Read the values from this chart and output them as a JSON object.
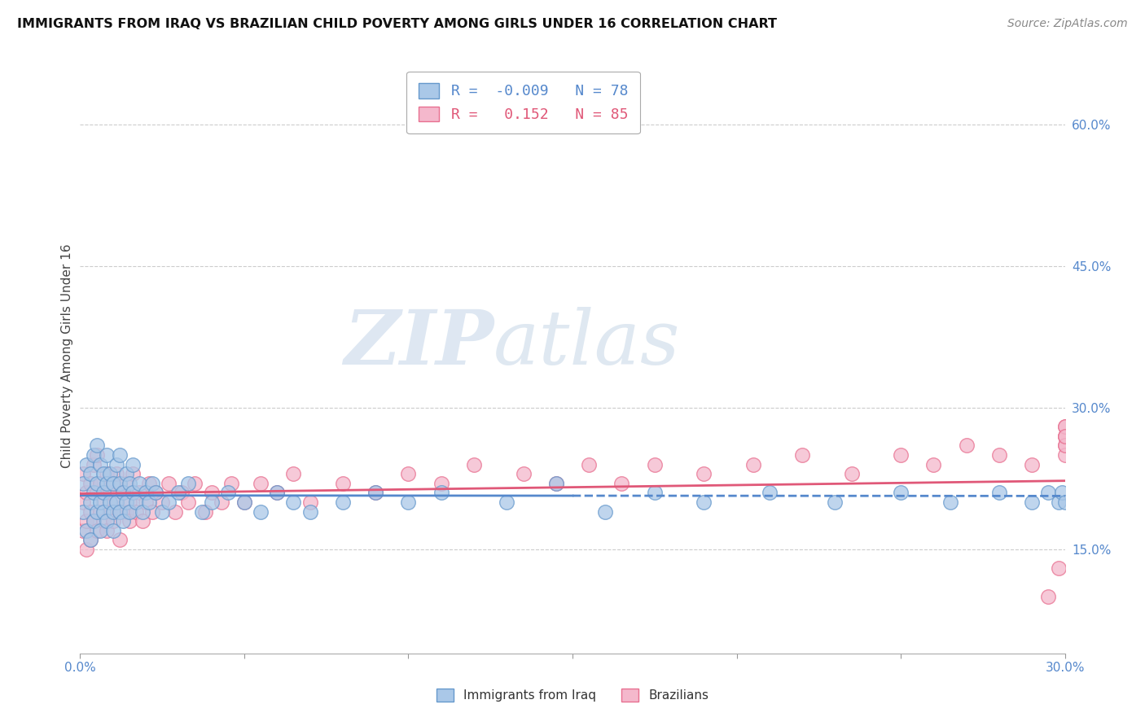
{
  "title": "IMMIGRANTS FROM IRAQ VS BRAZILIAN CHILD POVERTY AMONG GIRLS UNDER 16 CORRELATION CHART",
  "source": "Source: ZipAtlas.com",
  "ylabel": "Child Poverty Among Girls Under 16",
  "yaxis_values": [
    0.15,
    0.3,
    0.45,
    0.6
  ],
  "xmin": 0.0,
  "xmax": 0.3,
  "ymin": 0.04,
  "ymax": 0.67,
  "r_iraq": -0.009,
  "n_iraq": 78,
  "r_brazil": 0.152,
  "n_brazil": 85,
  "watermark_zip": "ZIP",
  "watermark_atlas": "atlas",
  "legend_iraq": "Immigrants from Iraq",
  "legend_brazil": "Brazilians",
  "color_iraq": "#aac8e8",
  "color_brazil": "#f4b8cc",
  "edge_iraq": "#6699cc",
  "edge_brazil": "#e87090",
  "line_iraq": "#5588cc",
  "line_brazil": "#e05878",
  "iraq_x": [
    0.001,
    0.001,
    0.002,
    0.002,
    0.003,
    0.003,
    0.003,
    0.004,
    0.004,
    0.004,
    0.005,
    0.005,
    0.005,
    0.006,
    0.006,
    0.006,
    0.007,
    0.007,
    0.007,
    0.008,
    0.008,
    0.008,
    0.009,
    0.009,
    0.01,
    0.01,
    0.01,
    0.011,
    0.011,
    0.012,
    0.012,
    0.012,
    0.013,
    0.013,
    0.014,
    0.014,
    0.015,
    0.015,
    0.016,
    0.016,
    0.017,
    0.018,
    0.019,
    0.02,
    0.021,
    0.022,
    0.023,
    0.025,
    0.027,
    0.03,
    0.033,
    0.037,
    0.04,
    0.045,
    0.05,
    0.055,
    0.06,
    0.065,
    0.07,
    0.08,
    0.09,
    0.1,
    0.11,
    0.13,
    0.145,
    0.16,
    0.175,
    0.19,
    0.21,
    0.23,
    0.25,
    0.265,
    0.28,
    0.29,
    0.295,
    0.298,
    0.299,
    0.3
  ],
  "iraq_y": [
    0.19,
    0.22,
    0.17,
    0.24,
    0.2,
    0.23,
    0.16,
    0.25,
    0.18,
    0.21,
    0.26,
    0.19,
    0.22,
    0.2,
    0.24,
    0.17,
    0.23,
    0.21,
    0.19,
    0.22,
    0.25,
    0.18,
    0.2,
    0.23,
    0.19,
    0.22,
    0.17,
    0.24,
    0.2,
    0.22,
    0.19,
    0.25,
    0.21,
    0.18,
    0.23,
    0.2,
    0.22,
    0.19,
    0.21,
    0.24,
    0.2,
    0.22,
    0.19,
    0.21,
    0.2,
    0.22,
    0.21,
    0.19,
    0.2,
    0.21,
    0.22,
    0.19,
    0.2,
    0.21,
    0.2,
    0.19,
    0.21,
    0.2,
    0.19,
    0.2,
    0.21,
    0.2,
    0.21,
    0.2,
    0.22,
    0.19,
    0.21,
    0.2,
    0.21,
    0.2,
    0.21,
    0.2,
    0.21,
    0.2,
    0.21,
    0.2,
    0.21,
    0.2
  ],
  "brazil_x": [
    0.001,
    0.001,
    0.001,
    0.002,
    0.002,
    0.002,
    0.003,
    0.003,
    0.003,
    0.004,
    0.004,
    0.005,
    0.005,
    0.005,
    0.006,
    0.006,
    0.007,
    0.007,
    0.008,
    0.008,
    0.009,
    0.009,
    0.01,
    0.01,
    0.011,
    0.011,
    0.012,
    0.012,
    0.013,
    0.014,
    0.014,
    0.015,
    0.015,
    0.016,
    0.017,
    0.018,
    0.019,
    0.02,
    0.021,
    0.022,
    0.023,
    0.025,
    0.027,
    0.029,
    0.031,
    0.033,
    0.035,
    0.038,
    0.04,
    0.043,
    0.046,
    0.05,
    0.055,
    0.06,
    0.065,
    0.07,
    0.08,
    0.09,
    0.1,
    0.11,
    0.12,
    0.135,
    0.145,
    0.155,
    0.165,
    0.175,
    0.19,
    0.205,
    0.22,
    0.235,
    0.25,
    0.26,
    0.27,
    0.28,
    0.29,
    0.295,
    0.298,
    0.3,
    0.3,
    0.3,
    0.3,
    0.3,
    0.3,
    0.3,
    0.3
  ],
  "brazil_y": [
    0.17,
    0.2,
    0.23,
    0.18,
    0.21,
    0.15,
    0.19,
    0.22,
    0.16,
    0.24,
    0.18,
    0.21,
    0.17,
    0.25,
    0.19,
    0.22,
    0.18,
    0.2,
    0.23,
    0.17,
    0.21,
    0.19,
    0.22,
    0.18,
    0.2,
    0.23,
    0.19,
    0.16,
    0.21,
    0.19,
    0.22,
    0.18,
    0.2,
    0.23,
    0.19,
    0.21,
    0.18,
    0.2,
    0.22,
    0.19,
    0.21,
    0.2,
    0.22,
    0.19,
    0.21,
    0.2,
    0.22,
    0.19,
    0.21,
    0.2,
    0.22,
    0.2,
    0.22,
    0.21,
    0.23,
    0.2,
    0.22,
    0.21,
    0.23,
    0.22,
    0.24,
    0.23,
    0.22,
    0.24,
    0.22,
    0.24,
    0.23,
    0.24,
    0.25,
    0.23,
    0.25,
    0.24,
    0.26,
    0.25,
    0.24,
    0.1,
    0.13,
    0.27,
    0.28,
    0.26,
    0.27,
    0.25,
    0.28,
    0.26,
    0.27
  ]
}
